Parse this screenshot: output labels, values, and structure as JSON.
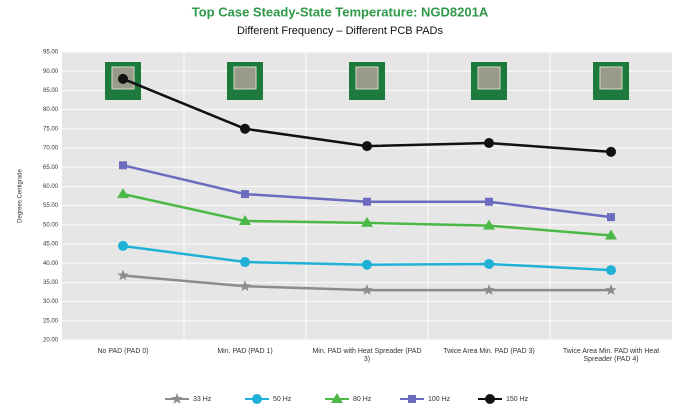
{
  "chart_data": {
    "type": "line",
    "title": "Top Case Steady-State Temperature: NGD8201A",
    "subtitle": "Different Frequency – Different PCB PADs",
    "y_label": "Degrees Centigrade",
    "categories": [
      "No PAD (PAD 0)",
      "Min. PAD (PAD 1)",
      "Min. PAD with Heat Spreader (PAD 3)",
      "Twice Area Min. PAD (PAD 3)",
      "Twice Area Min. PAD with Heat Spreader (PAD 4)"
    ],
    "series": [
      {
        "name": "33 Hz",
        "color": "#8c8c8c",
        "marker": "star",
        "values": [
          36.8,
          34,
          33,
          33,
          33
        ]
      },
      {
        "name": "50 Hz",
        "color": "#1fb1d6",
        "marker": "circle",
        "values": [
          44.5,
          40.3,
          39.6,
          39.8,
          38.2
        ]
      },
      {
        "name": "80 Hz",
        "color": "#4cb848",
        "marker": "triangle",
        "values": [
          58,
          51,
          50.5,
          49.8,
          47.2
        ]
      },
      {
        "name": "100 Hz",
        "color": "#6b6bbf",
        "marker": "square",
        "values": [
          65.5,
          58,
          56,
          56,
          52
        ]
      },
      {
        "name": "150 Hz",
        "color": "#111111",
        "marker": "circle",
        "values": [
          88,
          75,
          70.5,
          71.3,
          69
        ]
      }
    ],
    "ylim": [
      20,
      95
    ],
    "yticks": [
      {
        "value": 20,
        "label": "20.00"
      },
      {
        "value": 25,
        "label": "25.00"
      },
      {
        "value": 30,
        "label": "30.00"
      },
      {
        "value": 35,
        "label": "35.00"
      },
      {
        "value": 40,
        "label": "40.00"
      },
      {
        "value": 45,
        "label": "45.00"
      },
      {
        "value": 50,
        "label": "50.00"
      },
      {
        "value": 55,
        "label": "55.00"
      },
      {
        "value": 60,
        "label": "60.00"
      },
      {
        "value": 65,
        "label": "65.00"
      },
      {
        "value": 70,
        "label": "70.00"
      },
      {
        "value": 75,
        "label": "75.00"
      },
      {
        "value": 80,
        "label": "80.00"
      },
      {
        "value": 85,
        "label": "85.00"
      },
      {
        "value": 90,
        "label": "90.00"
      },
      {
        "value": 95,
        "label": "95.00"
      }
    ],
    "grid": true
  }
}
